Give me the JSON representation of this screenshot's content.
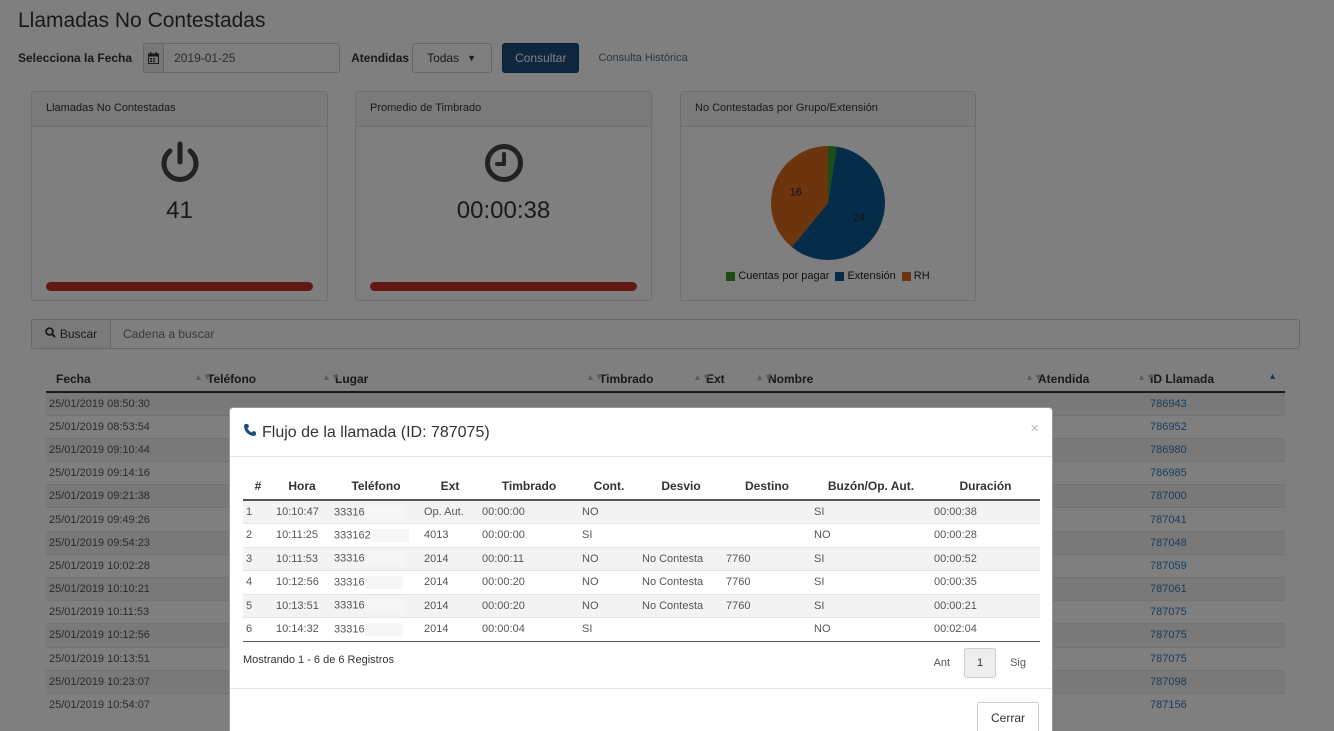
{
  "page": {
    "title": "Llamadas No Contestadas"
  },
  "filters": {
    "date_label": "Selecciona la Fecha",
    "date_value": "2019-01-25",
    "attended_label": "Atendidas",
    "attended_value": "Todas",
    "consult_button": "Consultar",
    "history_link": "Consulta Histórica"
  },
  "panels": {
    "missed": {
      "title": "Llamadas No Contestadas",
      "value": "41",
      "icon": "power-icon"
    },
    "ring_avg": {
      "title": "Promedio de Timbrado",
      "value": "00:00:38",
      "icon": "clock-icon"
    },
    "by_group": {
      "title": "No Contestadas por Grupo/Extensión",
      "chart_data": {
        "type": "pie",
        "slices": [
          {
            "name": "Cuentas por pagar",
            "value": 1,
            "color": "#3a9a2a"
          },
          {
            "name": "Extensión",
            "value": 24,
            "color": "#0b5a93"
          },
          {
            "name": "RH",
            "value": 16,
            "color": "#d86a1a"
          }
        ],
        "data_labels": [
          "24",
          "16"
        ],
        "legend": [
          "Cuentas por pagar",
          "Extensión",
          "RH"
        ]
      }
    }
  },
  "search": {
    "button_label": "Buscar",
    "placeholder": "Cadena a buscar"
  },
  "main_table": {
    "headers": [
      "Fecha",
      "Teléfono",
      "Lugar",
      "Timbrado",
      "Ext",
      "Nombre",
      "Atendida",
      "ID Llamada"
    ],
    "rows": [
      {
        "fecha": "25/01/2019 08:50:30",
        "id": "786943"
      },
      {
        "fecha": "25/01/2019 08:53:54",
        "id": "786952"
      },
      {
        "fecha": "25/01/2019 09:10:44",
        "id": "786980"
      },
      {
        "fecha": "25/01/2019 09:14:16",
        "id": "786985"
      },
      {
        "fecha": "25/01/2019 09:21:38",
        "id": "787000"
      },
      {
        "fecha": "25/01/2019 09:49:26",
        "id": "787041"
      },
      {
        "fecha": "25/01/2019 09:54:23",
        "id": "787048"
      },
      {
        "fecha": "25/01/2019 10:02:28",
        "id": "787059"
      },
      {
        "fecha": "25/01/2019 10:10:21",
        "id": "787061"
      },
      {
        "fecha": "25/01/2019 10:11:53",
        "id": "787075"
      },
      {
        "fecha": "25/01/2019 10:12:56",
        "id": "787075"
      },
      {
        "fecha": "25/01/2019 10:13:51",
        "id": "787075"
      },
      {
        "fecha": "25/01/2019 10:23:07",
        "id": "787098"
      },
      {
        "fecha": "25/01/2019 10:54:07",
        "id": "787156"
      }
    ]
  },
  "modal": {
    "title": "Flujo de la llamada (ID: 787075)",
    "close_symbol": "×",
    "headers": [
      "#",
      "Hora",
      "Teléfono",
      "Ext",
      "Timbrado",
      "Cont.",
      "Desvio",
      "Destino",
      "Buzón/Op. Aut.",
      "Duración"
    ],
    "rows": [
      {
        "n": "1",
        "hora": "10:10:47",
        "tel": "33316",
        "ext": "Op. Aut.",
        "timbrado": "00:00:00",
        "cont": "NO",
        "desvio": "",
        "destino": "",
        "buzon": "SI",
        "duracion": "00:00:38"
      },
      {
        "n": "2",
        "hora": "10:11:25",
        "tel": "333162",
        "ext": "4013",
        "timbrado": "00:00:00",
        "cont": "SI",
        "desvio": "",
        "destino": "",
        "buzon": "NO",
        "duracion": "00:00:28"
      },
      {
        "n": "3",
        "hora": "10:11:53",
        "tel": "33316",
        "ext": "2014",
        "timbrado": "00:00:11",
        "cont": "NO",
        "desvio": "No Contesta",
        "destino": "7760",
        "buzon": "SI",
        "duracion": "00:00:52"
      },
      {
        "n": "4",
        "hora": "10:12:56",
        "tel": "33316",
        "ext": "2014",
        "timbrado": "00:00:20",
        "cont": "NO",
        "desvio": "No Contesta",
        "destino": "7760",
        "buzon": "SI",
        "duracion": "00:00:35"
      },
      {
        "n": "5",
        "hora": "10:13:51",
        "tel": "33316",
        "ext": "2014",
        "timbrado": "00:00:20",
        "cont": "NO",
        "desvio": "No Contesta",
        "destino": "7760",
        "buzon": "SI",
        "duracion": "00:00:21"
      },
      {
        "n": "6",
        "hora": "10:14:32",
        "tel": "33316",
        "ext": "2014",
        "timbrado": "00:00:04",
        "cont": "SI",
        "desvio": "",
        "destino": "",
        "buzon": "NO",
        "duracion": "00:02:04"
      }
    ],
    "info": "Mostrando 1 - 6 de 6 Registros",
    "pager": {
      "prev": "Ant",
      "page": "1",
      "next": "Sig"
    },
    "close_button": "Cerrar"
  }
}
